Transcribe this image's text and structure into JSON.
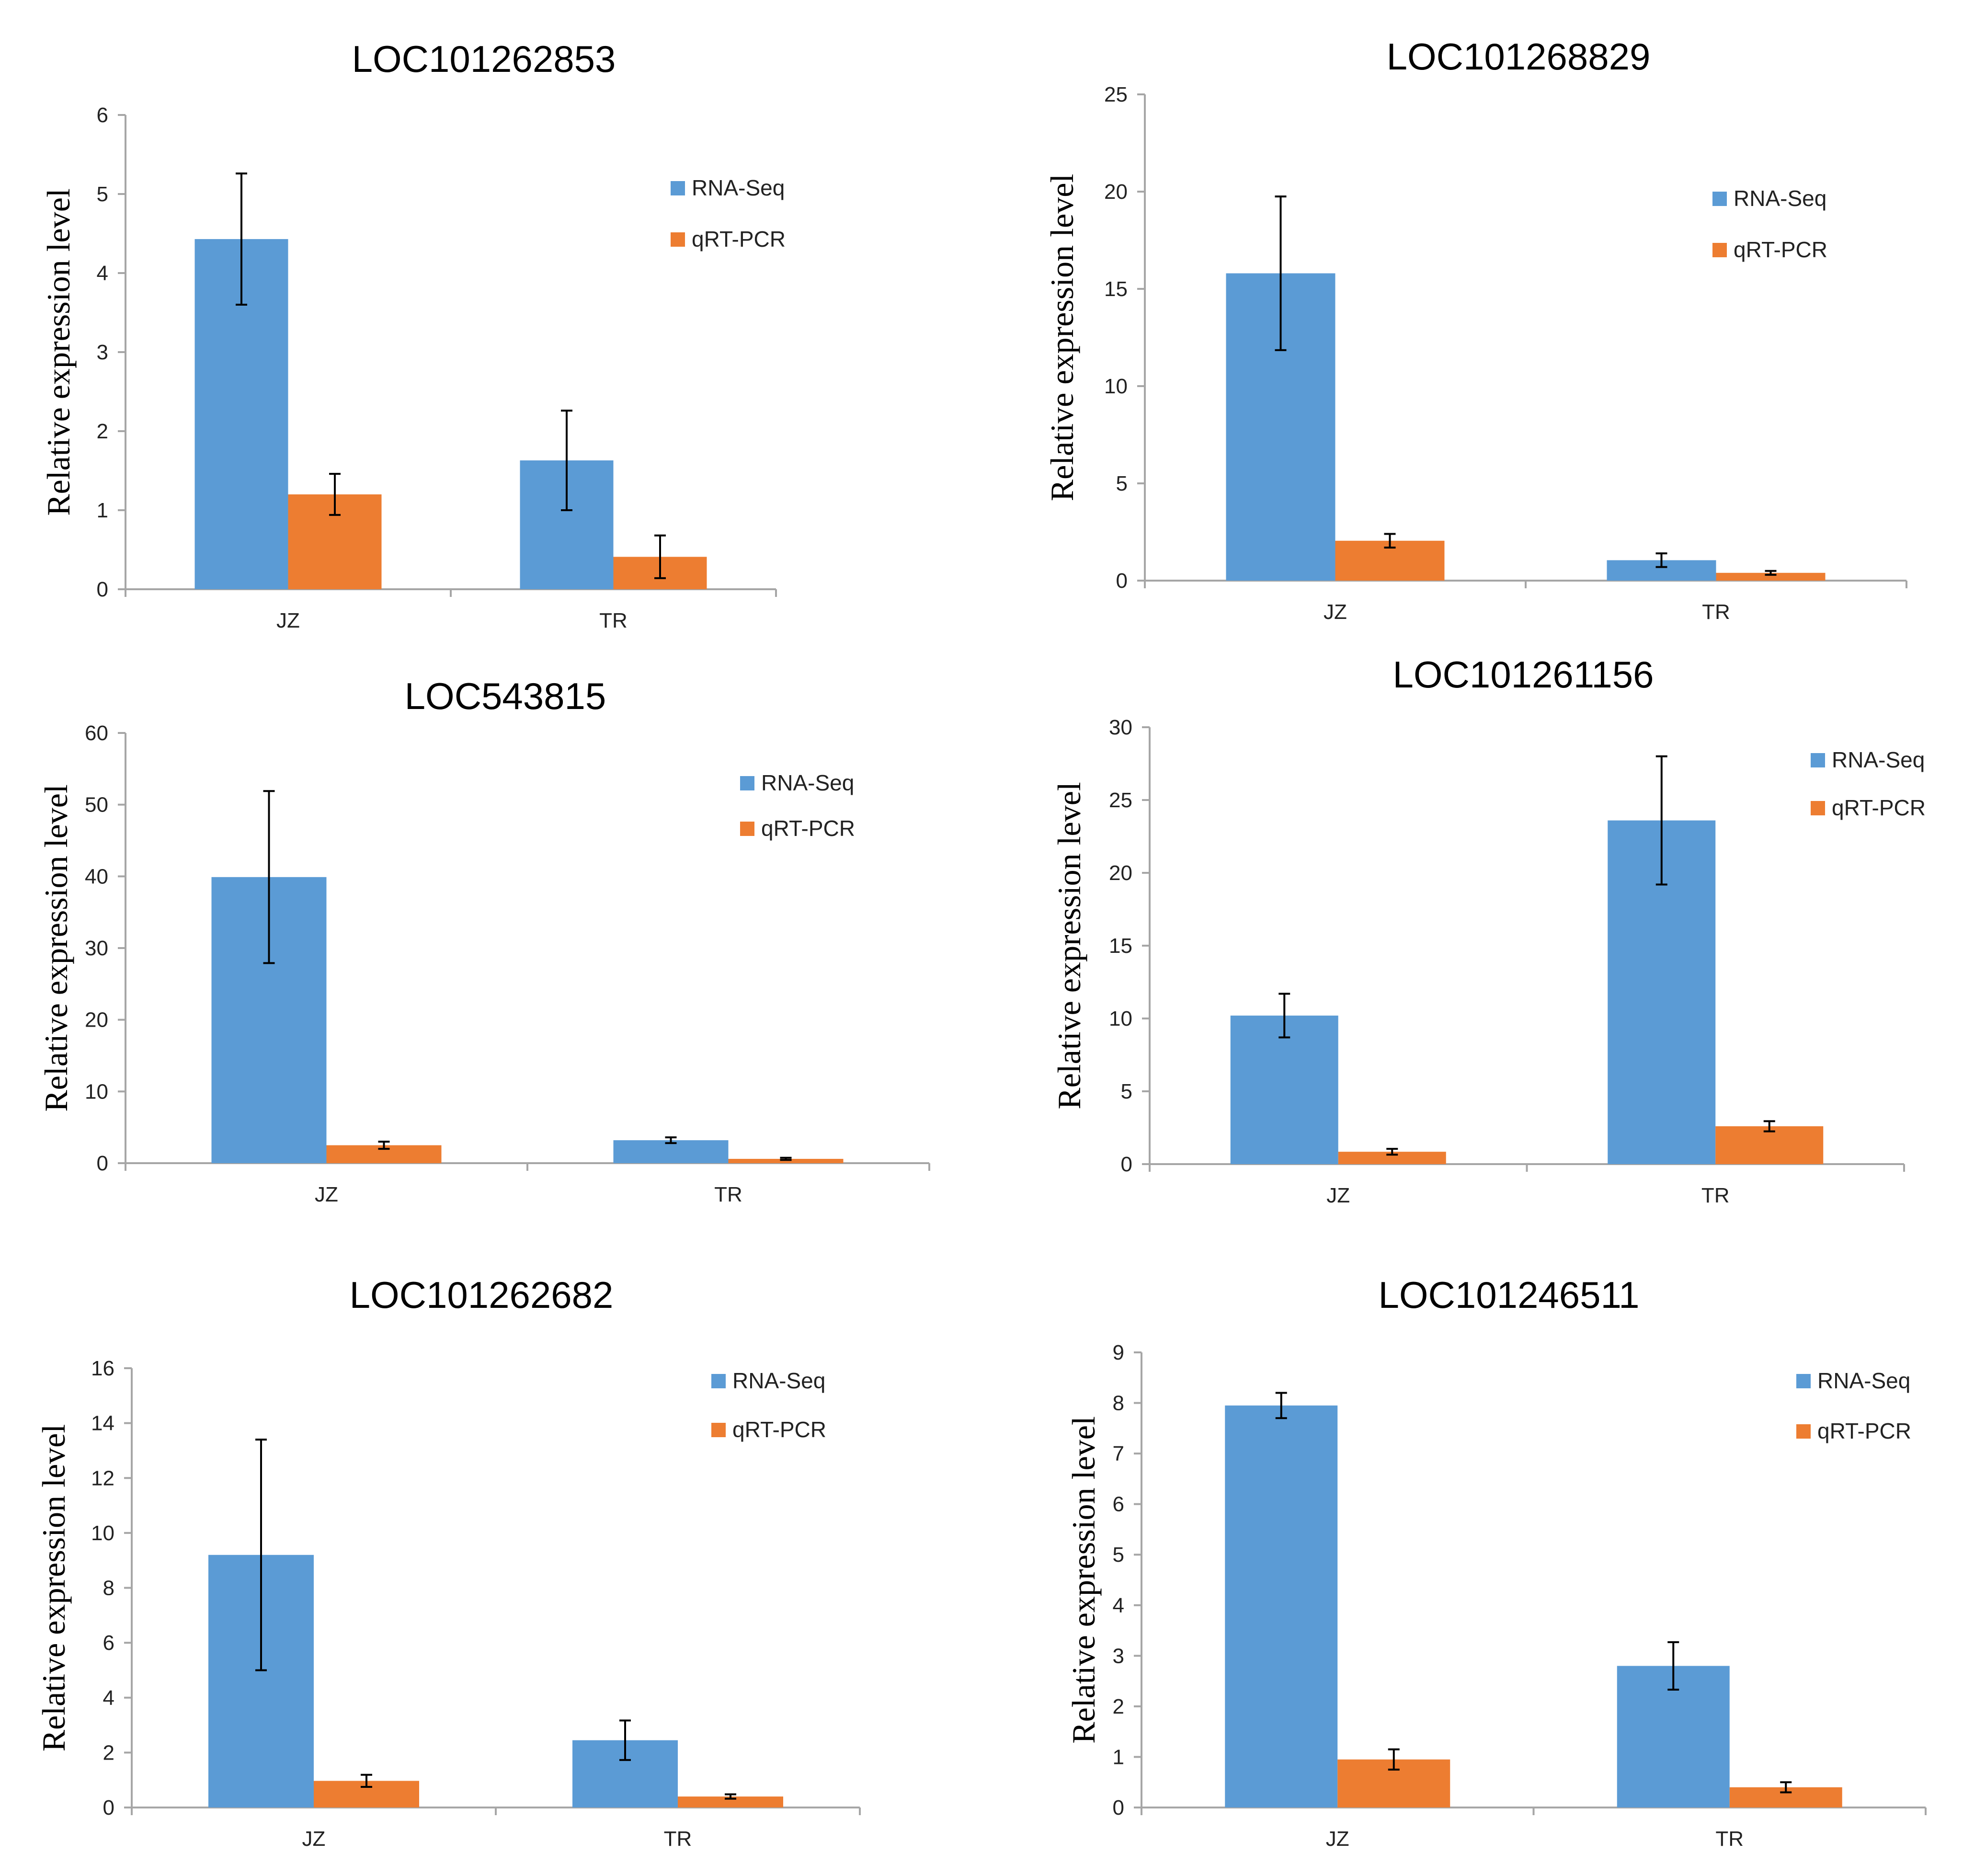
{
  "colors": {
    "rna_seq": "#5b9bd5",
    "qrt_pcr": "#ed7d31",
    "axis": "#a6a6a6",
    "error": "#000000"
  },
  "chart_data": [
    {
      "type": "bar",
      "title": "LOC101262853",
      "ylabel": "Relative expression level",
      "xlabel": "",
      "categories": [
        "JZ",
        "TR"
      ],
      "ylim": [
        0,
        6
      ],
      "yticks": [
        0,
        1,
        2,
        3,
        4,
        5,
        6
      ],
      "legend_position": "right",
      "series": [
        {
          "name": "RNA-Seq",
          "values": [
            4.43,
            1.63
          ],
          "errors": [
            0.83,
            0.63
          ]
        },
        {
          "name": "qRT-PCR",
          "values": [
            1.2,
            0.41
          ],
          "errors": [
            0.26,
            0.27
          ]
        }
      ]
    },
    {
      "type": "bar",
      "title": "LOC101268829",
      "ylabel": "Relative expression level",
      "xlabel": "",
      "categories": [
        "JZ",
        "TR"
      ],
      "ylim": [
        0,
        25
      ],
      "yticks": [
        0,
        5,
        10,
        15,
        20,
        25
      ],
      "legend_position": "right",
      "series": [
        {
          "name": "RNA-Seq",
          "values": [
            15.8,
            1.05
          ],
          "errors": [
            3.95,
            0.35
          ]
        },
        {
          "name": "qRT-PCR",
          "values": [
            2.05,
            0.4
          ],
          "errors": [
            0.35,
            0.1
          ]
        }
      ]
    },
    {
      "type": "bar",
      "title": "LOC543815",
      "ylabel": "Relative expression level",
      "xlabel": "",
      "categories": [
        "JZ",
        "TR"
      ],
      "ylim": [
        0,
        60
      ],
      "yticks": [
        0,
        10,
        20,
        30,
        40,
        50,
        60
      ],
      "legend_position": "right",
      "series": [
        {
          "name": "RNA-Seq",
          "values": [
            39.9,
            3.2
          ],
          "errors": [
            12.0,
            0.4
          ]
        },
        {
          "name": "qRT-PCR",
          "values": [
            2.5,
            0.6
          ],
          "errors": [
            0.5,
            0.15
          ]
        }
      ]
    },
    {
      "type": "bar",
      "title": "LOC101261156",
      "ylabel": "Relative expression level",
      "xlabel": "",
      "categories": [
        "JZ",
        "TR"
      ],
      "ylim": [
        0,
        30
      ],
      "yticks": [
        0,
        5,
        10,
        15,
        20,
        25,
        30
      ],
      "legend_position": "top-right",
      "series": [
        {
          "name": "RNA-Seq",
          "values": [
            10.2,
            23.6
          ],
          "errors": [
            1.5,
            4.4
          ]
        },
        {
          "name": "qRT-PCR",
          "values": [
            0.85,
            2.6
          ],
          "errors": [
            0.2,
            0.35
          ]
        }
      ]
    },
    {
      "type": "bar",
      "title": "LOC101262682",
      "ylabel": "Relative expression level",
      "xlabel": "",
      "categories": [
        "JZ",
        "TR"
      ],
      "ylim": [
        0,
        16
      ],
      "yticks": [
        0,
        2,
        4,
        6,
        8,
        10,
        12,
        14,
        16
      ],
      "legend_position": "right",
      "series": [
        {
          "name": "RNA-Seq",
          "values": [
            9.2,
            2.45
          ],
          "errors": [
            4.2,
            0.72
          ]
        },
        {
          "name": "qRT-PCR",
          "values": [
            0.97,
            0.4
          ],
          "errors": [
            0.22,
            0.08
          ]
        }
      ]
    },
    {
      "type": "bar",
      "title": "LOC101246511",
      "ylabel": "Relative expression level",
      "xlabel": "",
      "categories": [
        "JZ",
        "TR"
      ],
      "ylim": [
        0,
        9
      ],
      "yticks": [
        0,
        1,
        2,
        3,
        4,
        5,
        6,
        7,
        8,
        9
      ],
      "legend_position": "right",
      "series": [
        {
          "name": "RNA-Seq",
          "values": [
            7.95,
            2.8
          ],
          "errors": [
            0.25,
            0.47
          ]
        },
        {
          "name": "qRT-PCR",
          "values": [
            0.95,
            0.4
          ],
          "errors": [
            0.2,
            0.1
          ]
        }
      ]
    }
  ]
}
